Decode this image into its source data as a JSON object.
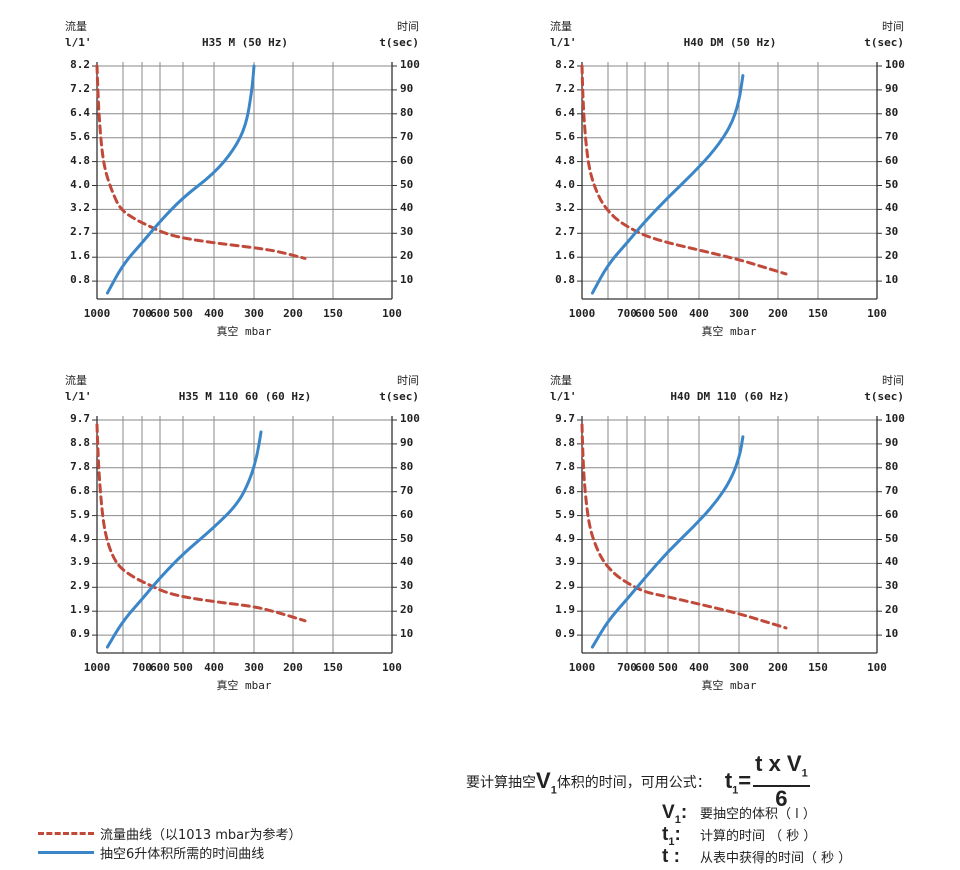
{
  "chart_data": [
    {
      "type": "line",
      "title": "H35 M (50 Hz)",
      "y_left_title": "流量",
      "y_left_unit": "l/1'",
      "y_right_title": "时间",
      "y_right_unit": "t(sec)",
      "xlabel": "真空 mbar",
      "x_ticks": [
        "1000",
        "700",
        "600",
        "500",
        "400",
        "300",
        "200",
        "150",
        "100"
      ],
      "y_left_ticks": [
        "8.2",
        "7.2",
        "6.4",
        "5.6",
        "4.8",
        "4.0",
        "3.2",
        "2.7",
        "1.6",
        "0.8"
      ],
      "y_right_ticks": [
        100,
        90,
        80,
        70,
        60,
        50,
        40,
        30,
        20,
        10
      ],
      "series": [
        {
          "name": "流量曲线（以1013 mbar为参考）",
          "style": "dashed",
          "color": "#c0493a",
          "points": [
            [
              1000,
              100
            ],
            [
              995,
              92
            ],
            [
              985,
              80
            ],
            [
              968,
              68
            ],
            [
              950,
              60
            ],
            [
              925,
              54
            ],
            [
              880,
              47
            ],
            [
              820,
              40
            ],
            [
              740,
              36
            ],
            [
              660,
              33
            ],
            [
              580,
              30
            ],
            [
              500,
              28
            ],
            [
              400,
              26
            ],
            [
              300,
              24
            ],
            [
              240,
              22.5
            ],
            [
              185,
              19.5
            ]
          ]
        },
        {
          "name": "抽空6升体积所需的时间曲线",
          "style": "solid",
          "color": "#3a86c8",
          "points": [
            [
              920,
              5
            ],
            [
              800,
              17
            ],
            [
              700,
              26
            ],
            [
              600,
              35
            ],
            [
              500,
              45
            ],
            [
              400,
              55
            ],
            [
              350,
              65
            ],
            [
              320,
              75
            ],
            [
              305,
              90
            ],
            [
              300,
              100
            ]
          ]
        }
      ]
    },
    {
      "type": "line",
      "title": "H40 DM (50 Hz)",
      "y_left_title": "流量",
      "y_left_unit": "l/1'",
      "y_right_title": "时间",
      "y_right_unit": "t(sec)",
      "xlabel": "真空 mbar",
      "x_ticks": [
        "1000",
        "700",
        "600",
        "500",
        "400",
        "300",
        "200",
        "150",
        "100"
      ],
      "y_left_ticks": [
        "8.2",
        "7.2",
        "6.4",
        "5.6",
        "4.8",
        "4.0",
        "3.2",
        "2.7",
        "1.6",
        "0.8"
      ],
      "y_right_ticks": [
        100,
        90,
        80,
        70,
        60,
        50,
        40,
        30,
        20,
        10
      ],
      "series": [
        {
          "name": "流量曲线（以1013 mbar为参考）",
          "style": "dashed",
          "color": "#c0493a",
          "points": [
            [
              1000,
              100
            ],
            [
              995,
              90
            ],
            [
              985,
              78
            ],
            [
              965,
              65
            ],
            [
              940,
              56
            ],
            [
              900,
              49
            ],
            [
              840,
              42
            ],
            [
              760,
              36
            ],
            [
              680,
              32
            ],
            [
              600,
              29
            ],
            [
              500,
              26
            ],
            [
              400,
              23
            ],
            [
              300,
              19
            ],
            [
              240,
              16
            ],
            [
              190,
              13
            ]
          ]
        },
        {
          "name": "抽空6升体积所需的时间曲线",
          "style": "solid",
          "color": "#3a86c8",
          "points": [
            [
              920,
              5
            ],
            [
              800,
              17
            ],
            [
              700,
              26
            ],
            [
              600,
              35
            ],
            [
              500,
              45
            ],
            [
              420,
              55
            ],
            [
              360,
              65
            ],
            [
              320,
              75
            ],
            [
              300,
              85
            ],
            [
              290,
              96
            ]
          ]
        }
      ]
    },
    {
      "type": "line",
      "title": "H35 M 110 60 (60 Hz)",
      "y_left_title": "流量",
      "y_left_unit": "l/1'",
      "y_right_title": "时间",
      "y_right_unit": "t(sec)",
      "xlabel": "真空 mbar",
      "x_ticks": [
        "1000",
        "700",
        "600",
        "500",
        "400",
        "300",
        "200",
        "150",
        "100"
      ],
      "y_left_ticks": [
        "9.7",
        "8.8",
        "7.8",
        "6.8",
        "5.9",
        "4.9",
        "3.9",
        "2.9",
        "1.9",
        "0.9"
      ],
      "y_right_ticks": [
        100,
        90,
        80,
        70,
        60,
        50,
        40,
        30,
        20,
        10
      ],
      "series": [
        {
          "name": "流量曲线（以1013 mbar为参考）",
          "style": "dashed",
          "color": "#c0493a",
          "points": [
            [
              1000,
              98
            ],
            [
              995,
              90
            ],
            [
              985,
              78
            ],
            [
              968,
              66
            ],
            [
              950,
              57
            ],
            [
              925,
              50
            ],
            [
              880,
              43
            ],
            [
              820,
              38
            ],
            [
              740,
              34
            ],
            [
              660,
              31
            ],
            [
              580,
              28
            ],
            [
              500,
              26
            ],
            [
              400,
              24
            ],
            [
              300,
              22
            ],
            [
              240,
              19.5
            ],
            [
              185,
              16
            ]
          ]
        },
        {
          "name": "抽空6升体积所需的时间曲线",
          "style": "solid",
          "color": "#3a86c8",
          "points": [
            [
              920,
              5
            ],
            [
              800,
              16
            ],
            [
              700,
              25
            ],
            [
              600,
              34
            ],
            [
              500,
              44
            ],
            [
              400,
              55
            ],
            [
              340,
              65
            ],
            [
              310,
              75
            ],
            [
              292,
              85
            ],
            [
              282,
              95
            ]
          ]
        }
      ]
    },
    {
      "type": "line",
      "title": "H40 DM 110 (60 Hz)",
      "y_left_title": "流量",
      "y_left_unit": "l/1'",
      "y_right_title": "时间",
      "y_right_unit": "t(sec)",
      "xlabel": "真空 mbar",
      "x_ticks": [
        "1000",
        "700",
        "600",
        "500",
        "400",
        "300",
        "200",
        "150",
        "100"
      ],
      "y_left_ticks": [
        "9.7",
        "8.8",
        "7.8",
        "6.8",
        "5.9",
        "4.9",
        "3.9",
        "2.9",
        "1.9",
        "0.9"
      ],
      "y_right_ticks": [
        100,
        90,
        80,
        70,
        60,
        50,
        40,
        30,
        20,
        10
      ],
      "series": [
        {
          "name": "流量曲线（以1013 mbar为参考）",
          "style": "dashed",
          "color": "#c0493a",
          "points": [
            [
              1000,
              98
            ],
            [
              995,
              88
            ],
            [
              985,
              76
            ],
            [
              965,
              64
            ],
            [
              940,
              55
            ],
            [
              900,
              48
            ],
            [
              840,
              41
            ],
            [
              760,
              35
            ],
            [
              680,
              31
            ],
            [
              600,
              28
            ],
            [
              500,
              26
            ],
            [
              400,
              23
            ],
            [
              300,
              19
            ],
            [
              240,
              16
            ],
            [
              190,
              13
            ]
          ]
        },
        {
          "name": "抽空6升体积所需的时间曲线",
          "style": "solid",
          "color": "#3a86c8",
          "points": [
            [
              920,
              5
            ],
            [
              800,
              16
            ],
            [
              700,
              25
            ],
            [
              600,
              34
            ],
            [
              500,
              45
            ],
            [
              420,
              55
            ],
            [
              360,
              65
            ],
            [
              320,
              75
            ],
            [
              298,
              85
            ],
            [
              290,
              93
            ]
          ]
        }
      ]
    }
  ],
  "legend": {
    "flow_curve": "流量曲线（以1013 mbar为参考）",
    "time_curve": "抽空6升体积所需的时间曲线"
  },
  "formula": {
    "intro": "要计算抽空",
    "v1_symbol": "V",
    "v1_sub": "1",
    "intro_tail": "体积的时间，可用公式：",
    "t1_symbol": "t",
    "t1_sub": "1",
    "equals": "=",
    "numerator": "t x V",
    "numerator_sub": "1",
    "denominator": "6",
    "defs": [
      {
        "symbol": "V",
        "sub": "1",
        "colon": ":",
        "text": "要抽空的体积（ l ）"
      },
      {
        "symbol": "t",
        "sub": "1",
        "colon": ":",
        "text": "计算的时间 （ 秒 ）"
      },
      {
        "symbol": "t",
        "sub": "",
        "colon": ":",
        "text": "从表中获得的时间（ 秒 ）"
      }
    ]
  },
  "colors": {
    "flow": "#c0493a",
    "time": "#3a86c8",
    "grid": "#8a8a8a",
    "axis": "#333333"
  }
}
